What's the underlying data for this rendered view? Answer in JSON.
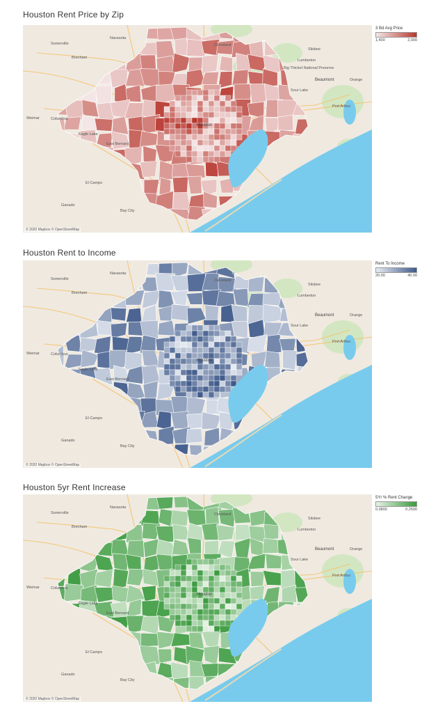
{
  "panels": [
    {
      "id": "rent-price",
      "title": "Houston Rent Price by Zip",
      "legend": {
        "title": "3 Bd Avg Price",
        "min_label": "1,400",
        "max_label": "2,000",
        "color_low": "#f4e6e6",
        "color_high": "#b8382f"
      },
      "attribution": "© 2020 Mapbox © OpenStreetMap"
    },
    {
      "id": "rent-income",
      "title": "Houston Rent to Income",
      "legend": {
        "title": "Rent To Income",
        "min_label": "20.00",
        "max_label": "40.00",
        "color_low": "#e8ecf3",
        "color_high": "#3f5a8a"
      },
      "attribution": "© 2020 Mapbox © OpenStreetMap"
    },
    {
      "id": "rent-increase",
      "title": "Houston 5yr Rent Increase",
      "legend": {
        "title": "5Yr % Rent Change",
        "min_label": "0.0800",
        "max_label": "0.2500",
        "color_low": "#e6f2e3",
        "color_high": "#3a9a3e"
      },
      "attribution": "© 2020 Mapbox © OpenStreetMap"
    }
  ],
  "places": {
    "navasota": "Navasota",
    "brenham": "Brenham",
    "weimar": "Weimar",
    "columbus": "Columbus",
    "eagle_lake": "Eagle Lake",
    "east_bernard": "East Bernard",
    "el_campo": "El Campo",
    "ganado": "Ganado",
    "bay_city": "Bay City",
    "lumberton": "Lumberton",
    "beaumont": "Beaumont",
    "orange": "Orange",
    "port_arthur": "Port Arthur",
    "houston": "Houston",
    "cleveland": "Cleveland",
    "silsbee": "Silsbee",
    "big_thicket": "Big Thicket National Preserve",
    "sour_lake": "Sour Lake",
    "somerville": "Somerville"
  },
  "palettes": {
    "land": "#efe9e0",
    "water": "#78cbed",
    "forest": "#cfe5bf",
    "road": "#f5c26b",
    "border": "#ffffff"
  }
}
